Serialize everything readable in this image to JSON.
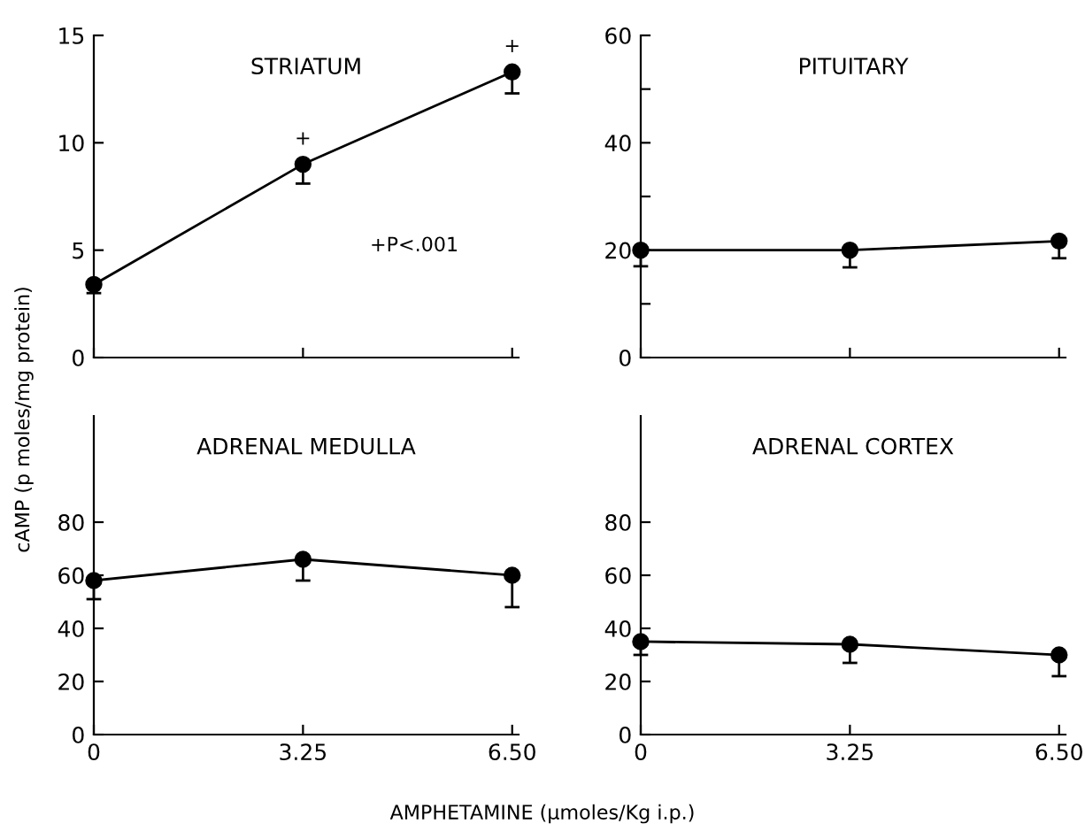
{
  "chart_data": [
    {
      "type": "line",
      "title": "STRIATUM",
      "ylabel": "cAMP (p moles/mg protein)",
      "x": [
        0,
        3.25,
        6.5
      ],
      "xlim": [
        0,
        6.6
      ],
      "xticks": [
        {
          "value": 0,
          "label": null
        },
        {
          "value": 3.25,
          "label": null
        },
        {
          "value": 6.5,
          "label": null
        }
      ],
      "ylim": [
        0,
        15
      ],
      "yticks": [
        0,
        5,
        10,
        15
      ],
      "tick_labels": "y",
      "marker": "circle",
      "line_style": "solid",
      "grid": false,
      "legend": false,
      "series": [
        {
          "color": "#000000",
          "values": [
            3.4,
            9.0,
            13.3
          ],
          "errors": [
            [
              3.0,
              3.4
            ],
            [
              8.1,
              9.0
            ],
            [
              12.3,
              13.3
            ]
          ]
        }
      ],
      "annotations": [
        {
          "text": "+",
          "x": 3.25,
          "y": 9.0
        },
        {
          "text": "+",
          "x": 6.5,
          "y": 13.3
        },
        "+P<.001"
      ]
    },
    {
      "type": "line",
      "title": "PITUITARY",
      "x": [
        0,
        3.25,
        6.5
      ],
      "xlim": [
        0,
        6.6
      ],
      "xticks": [
        {
          "value": 0,
          "label": null
        },
        {
          "value": 3.25,
          "label": null
        },
        {
          "value": 6.5,
          "label": null
        }
      ],
      "ylim": [
        0,
        60
      ],
      "yticks": [
        0,
        {
          "value": 10,
          "label": null
        },
        20,
        {
          "value": 30,
          "label": null
        },
        40,
        {
          "value": 50,
          "label": null
        },
        60
      ],
      "tick_labels": "y",
      "marker": "circle",
      "line_style": "solid",
      "grid": false,
      "legend": false,
      "series": [
        {
          "color": "#000000",
          "values": [
            20,
            20,
            21.7
          ],
          "errors": [
            [
              17,
              20
            ],
            [
              16.8,
              20
            ],
            [
              18.5,
              21.7
            ]
          ]
        }
      ]
    },
    {
      "type": "line",
      "title": "ADRENAL MEDULLA",
      "xlabel": "AMPHETAMINE (μmoles/Kg i.p.)",
      "x": [
        0,
        3.25,
        6.5
      ],
      "xlim": [
        0,
        6.6
      ],
      "xticks": [
        0,
        3.25,
        {
          "value": 6.5,
          "label": "6.50"
        }
      ],
      "ylim": [
        0,
        120
      ],
      "yticks": [
        0,
        20,
        40,
        60,
        80
      ],
      "marker": "circle",
      "line_style": "solid",
      "grid": false,
      "legend": false,
      "series": [
        {
          "color": "#000000",
          "values": [
            58,
            66,
            60
          ],
          "errors": [
            [
              51,
              58
            ],
            [
              58,
              66
            ],
            [
              48,
              60
            ]
          ]
        }
      ]
    },
    {
      "type": "line",
      "title": "ADRENAL CORTEX",
      "x": [
        0,
        3.25,
        6.5
      ],
      "xlim": [
        0,
        6.6
      ],
      "xticks": [
        0,
        3.25,
        {
          "value": 6.5,
          "label": "6.50"
        }
      ],
      "ylim": [
        0,
        120
      ],
      "yticks": [
        0,
        20,
        40,
        60,
        80
      ],
      "marker": "circle",
      "line_style": "solid",
      "grid": false,
      "legend": false,
      "series": [
        {
          "color": "#000000",
          "values": [
            35,
            34,
            30
          ],
          "errors": [
            [
              30,
              35
            ],
            [
              27,
              34
            ],
            [
              22,
              30
            ]
          ]
        }
      ]
    }
  ]
}
